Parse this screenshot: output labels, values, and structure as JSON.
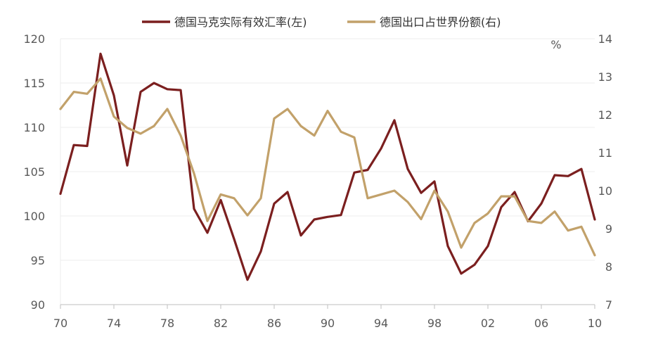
{
  "chart_data": {
    "type": "line",
    "title": "",
    "xlabel": "",
    "ylabel": "",
    "y2label": "%",
    "legend_position": "top-center",
    "grid": true,
    "x": [
      70,
      71,
      72,
      73,
      74,
      75,
      76,
      77,
      78,
      79,
      80,
      81,
      82,
      83,
      84,
      85,
      86,
      87,
      88,
      89,
      90,
      91,
      92,
      93,
      94,
      95,
      96,
      97,
      98,
      99,
      0,
      1,
      2,
      3,
      4,
      5,
      6,
      7,
      8,
      9,
      10
    ],
    "x_tick_labels": [
      "70",
      "74",
      "78",
      "82",
      "86",
      "90",
      "94",
      "98",
      "02",
      "06",
      "10"
    ],
    "y_left_range": [
      90,
      120
    ],
    "y_left_ticks": [
      "90",
      "95",
      "100",
      "105",
      "110",
      "115",
      "120"
    ],
    "y_right_range": [
      7,
      14
    ],
    "y_right_ticks": [
      "7",
      "8",
      "9",
      "10",
      "11",
      "12",
      "13",
      "14"
    ],
    "series": [
      {
        "name": "德国马克实际有效汇率(左)",
        "axis": "left",
        "color": "#7B1F1F",
        "values": [
          102.5,
          108.0,
          107.9,
          118.3,
          113.6,
          105.7,
          114.0,
          115.0,
          114.3,
          114.2,
          100.8,
          98.1,
          101.8,
          97.4,
          92.8,
          96.0,
          101.4,
          102.7,
          97.8,
          99.6,
          99.9,
          100.1,
          104.9,
          105.2,
          107.6,
          110.8,
          105.3,
          102.6,
          103.9,
          96.6,
          93.5,
          94.5,
          96.6,
          101.0,
          102.7,
          99.4,
          101.4,
          104.6,
          104.5,
          105.3,
          99.6
        ]
      },
      {
        "name": "德国出口占世界份额(右)",
        "axis": "right",
        "color": "#C2A16A",
        "values": [
          12.15,
          12.6,
          12.55,
          12.95,
          11.95,
          11.65,
          11.5,
          11.7,
          12.15,
          11.45,
          10.45,
          9.2,
          9.9,
          9.8,
          9.35,
          9.8,
          11.9,
          12.15,
          11.7,
          11.45,
          12.1,
          11.55,
          11.4,
          9.8,
          9.9,
          10.0,
          9.7,
          9.25,
          10.0,
          9.45,
          8.5,
          9.15,
          9.4,
          9.85,
          9.85,
          9.2,
          9.15,
          9.45,
          8.95,
          9.05,
          8.3
        ]
      }
    ]
  }
}
